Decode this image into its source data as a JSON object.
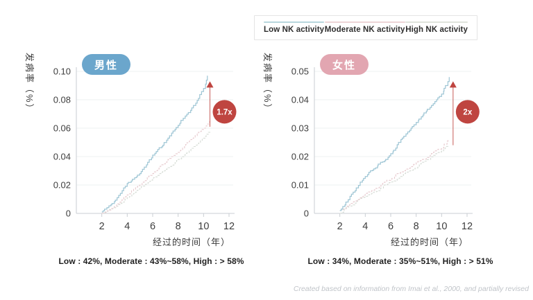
{
  "page": {
    "background": "#ffffff"
  },
  "legend": {
    "items": [
      {
        "label": "Low NK activity",
        "color": "#b7d6dd"
      },
      {
        "label": "Moderate NK activity",
        "color": "#ecd4d6"
      },
      {
        "label": "High NK activity",
        "color": "#dfe3dc"
      }
    ]
  },
  "attribution": "Created based on information from Imai et al., 2000, and partially revised",
  "colors": {
    "accent_red": "#bf4540",
    "axis": "#c9ced3",
    "grid": "#eef0f1",
    "tick_text": "#3d3d3d"
  },
  "chart_data": [
    {
      "type": "line",
      "id": "male",
      "badge": {
        "label": "男性",
        "color": "#6ba6cc"
      },
      "ylabel": "发病率（%）",
      "xlabel": "经过的时间（年）",
      "caption": "Low : 42%, Moderate : 43%~58%, High : > 58%",
      "ylim": [
        0,
        0.1
      ],
      "ytick_values": [
        0.1,
        0.08,
        0.06,
        0.04,
        0.02,
        0
      ],
      "ytick_labels": [
        "0.10",
        "0.08",
        "0.06",
        "0.04",
        "0.02",
        "0"
      ],
      "xticks": [
        2,
        4,
        6,
        8,
        10,
        12
      ],
      "grid": true,
      "legend_position": "top-right-outside",
      "series": [
        {
          "name": "Low NK activity",
          "color": "#9fc6d5",
          "dashed": false,
          "points": [
            [
              2,
              0.001
            ],
            [
              2.4,
              0.004
            ],
            [
              2.8,
              0.007
            ],
            [
              3.2,
              0.011
            ],
            [
              3.6,
              0.016
            ],
            [
              4,
              0.021
            ],
            [
              4.4,
              0.024
            ],
            [
              4.8,
              0.027
            ],
            [
              5.2,
              0.031
            ],
            [
              5.6,
              0.036
            ],
            [
              6,
              0.041
            ],
            [
              6.4,
              0.045
            ],
            [
              6.8,
              0.048
            ],
            [
              7.2,
              0.053
            ],
            [
              7.6,
              0.058
            ],
            [
              8,
              0.062
            ],
            [
              8.4,
              0.067
            ],
            [
              8.8,
              0.071
            ],
            [
              9.2,
              0.076
            ],
            [
              9.6,
              0.081
            ],
            [
              10,
              0.088
            ],
            [
              10.3,
              0.097
            ]
          ]
        },
        {
          "name": "Moderate NK activity",
          "color": "#e7cace",
          "dashed": true,
          "points": [
            [
              2,
              0.0
            ],
            [
              2.5,
              0.002
            ],
            [
              3,
              0.005
            ],
            [
              3.5,
              0.009
            ],
            [
              4,
              0.013
            ],
            [
              4.5,
              0.017
            ],
            [
              5,
              0.02
            ],
            [
              5.5,
              0.024
            ],
            [
              6,
              0.028
            ],
            [
              6.5,
              0.032
            ],
            [
              7,
              0.036
            ],
            [
              7.5,
              0.04
            ],
            [
              8,
              0.043
            ],
            [
              8.5,
              0.047
            ],
            [
              9,
              0.052
            ],
            [
              9.5,
              0.056
            ],
            [
              10,
              0.06
            ],
            [
              10.5,
              0.066
            ]
          ]
        },
        {
          "name": "High NK activity",
          "color": "#d6dcd5",
          "dashed": true,
          "points": [
            [
              2,
              0.0
            ],
            [
              2.5,
              0.002
            ],
            [
              3,
              0.004
            ],
            [
              3.5,
              0.007
            ],
            [
              4,
              0.011
            ],
            [
              4.5,
              0.014
            ],
            [
              5,
              0.018
            ],
            [
              5.5,
              0.021
            ],
            [
              6,
              0.024
            ],
            [
              6.5,
              0.028
            ],
            [
              7,
              0.031
            ],
            [
              7.5,
              0.034
            ],
            [
              8,
              0.038
            ],
            [
              8.5,
              0.041
            ],
            [
              9,
              0.045
            ],
            [
              9.5,
              0.049
            ],
            [
              10,
              0.053
            ],
            [
              10.5,
              0.058
            ]
          ]
        }
      ],
      "arrow": {
        "x": 10.5,
        "from": 0.061,
        "to": 0.093,
        "label": "1.7x"
      }
    },
    {
      "type": "line",
      "id": "female",
      "badge": {
        "label": "女性",
        "color": "#e2a6b1"
      },
      "ylabel": "发病率（%）",
      "xlabel": "经过的时间（年）",
      "caption": "Low : 34%, Moderate : 35%~51%, High : > 51%",
      "ylim": [
        0,
        0.05
      ],
      "ytick_values": [
        0.05,
        0.04,
        0.03,
        0.02,
        0.01,
        0
      ],
      "ytick_labels": [
        "0.05",
        "0.04",
        "0.03",
        "0.02",
        "0.01",
        "0"
      ],
      "xticks": [
        2,
        4,
        6,
        8,
        10,
        12
      ],
      "grid": true,
      "legend_position": "top-right-outside",
      "series": [
        {
          "name": "Low NK activity",
          "color": "#9fc6d5",
          "dashed": false,
          "points": [
            [
              2,
              0.001
            ],
            [
              2.4,
              0.003
            ],
            [
              2.8,
              0.006
            ],
            [
              3.2,
              0.008
            ],
            [
              3.6,
              0.011
            ],
            [
              4,
              0.013
            ],
            [
              4.4,
              0.015
            ],
            [
              4.8,
              0.016
            ],
            [
              5.2,
              0.018
            ],
            [
              5.6,
              0.019
            ],
            [
              6,
              0.021
            ],
            [
              6.4,
              0.023
            ],
            [
              6.8,
              0.026
            ],
            [
              7.2,
              0.028
            ],
            [
              7.6,
              0.03
            ],
            [
              8,
              0.032
            ],
            [
              8.4,
              0.034
            ],
            [
              8.8,
              0.036
            ],
            [
              9.2,
              0.038
            ],
            [
              9.6,
              0.04
            ],
            [
              10,
              0.042
            ],
            [
              10.3,
              0.045
            ],
            [
              10.6,
              0.048
            ]
          ]
        },
        {
          "name": "Moderate NK activity",
          "color": "#e7cace",
          "dashed": true,
          "points": [
            [
              2,
              0.001
            ],
            [
              2.5,
              0.002
            ],
            [
              3,
              0.004
            ],
            [
              3.5,
              0.005
            ],
            [
              4,
              0.007
            ],
            [
              4.5,
              0.008
            ],
            [
              5,
              0.009
            ],
            [
              5.5,
              0.011
            ],
            [
              6,
              0.012
            ],
            [
              6.5,
              0.014
            ],
            [
              7,
              0.015
            ],
            [
              7.5,
              0.016
            ],
            [
              8,
              0.018
            ],
            [
              8.5,
              0.019
            ],
            [
              9,
              0.02
            ],
            [
              9.5,
              0.022
            ],
            [
              10,
              0.023
            ],
            [
              10.5,
              0.026
            ]
          ]
        },
        {
          "name": "High NK activity",
          "color": "#d6dcd5",
          "dashed": true,
          "points": [
            [
              2,
              0.0
            ],
            [
              2.5,
              0.002
            ],
            [
              3,
              0.003
            ],
            [
              3.5,
              0.005
            ],
            [
              4,
              0.006
            ],
            [
              4.5,
              0.007
            ],
            [
              5,
              0.008
            ],
            [
              5.5,
              0.01
            ],
            [
              6,
              0.011
            ],
            [
              6.5,
              0.012
            ],
            [
              7,
              0.014
            ],
            [
              7.5,
              0.015
            ],
            [
              8,
              0.016
            ],
            [
              8.5,
              0.018
            ],
            [
              9,
              0.019
            ],
            [
              9.5,
              0.021
            ],
            [
              10,
              0.022
            ],
            [
              10.5,
              0.024
            ]
          ]
        }
      ],
      "arrow": {
        "x": 10.9,
        "from": 0.024,
        "to": 0.0465,
        "label": "2x"
      }
    }
  ]
}
